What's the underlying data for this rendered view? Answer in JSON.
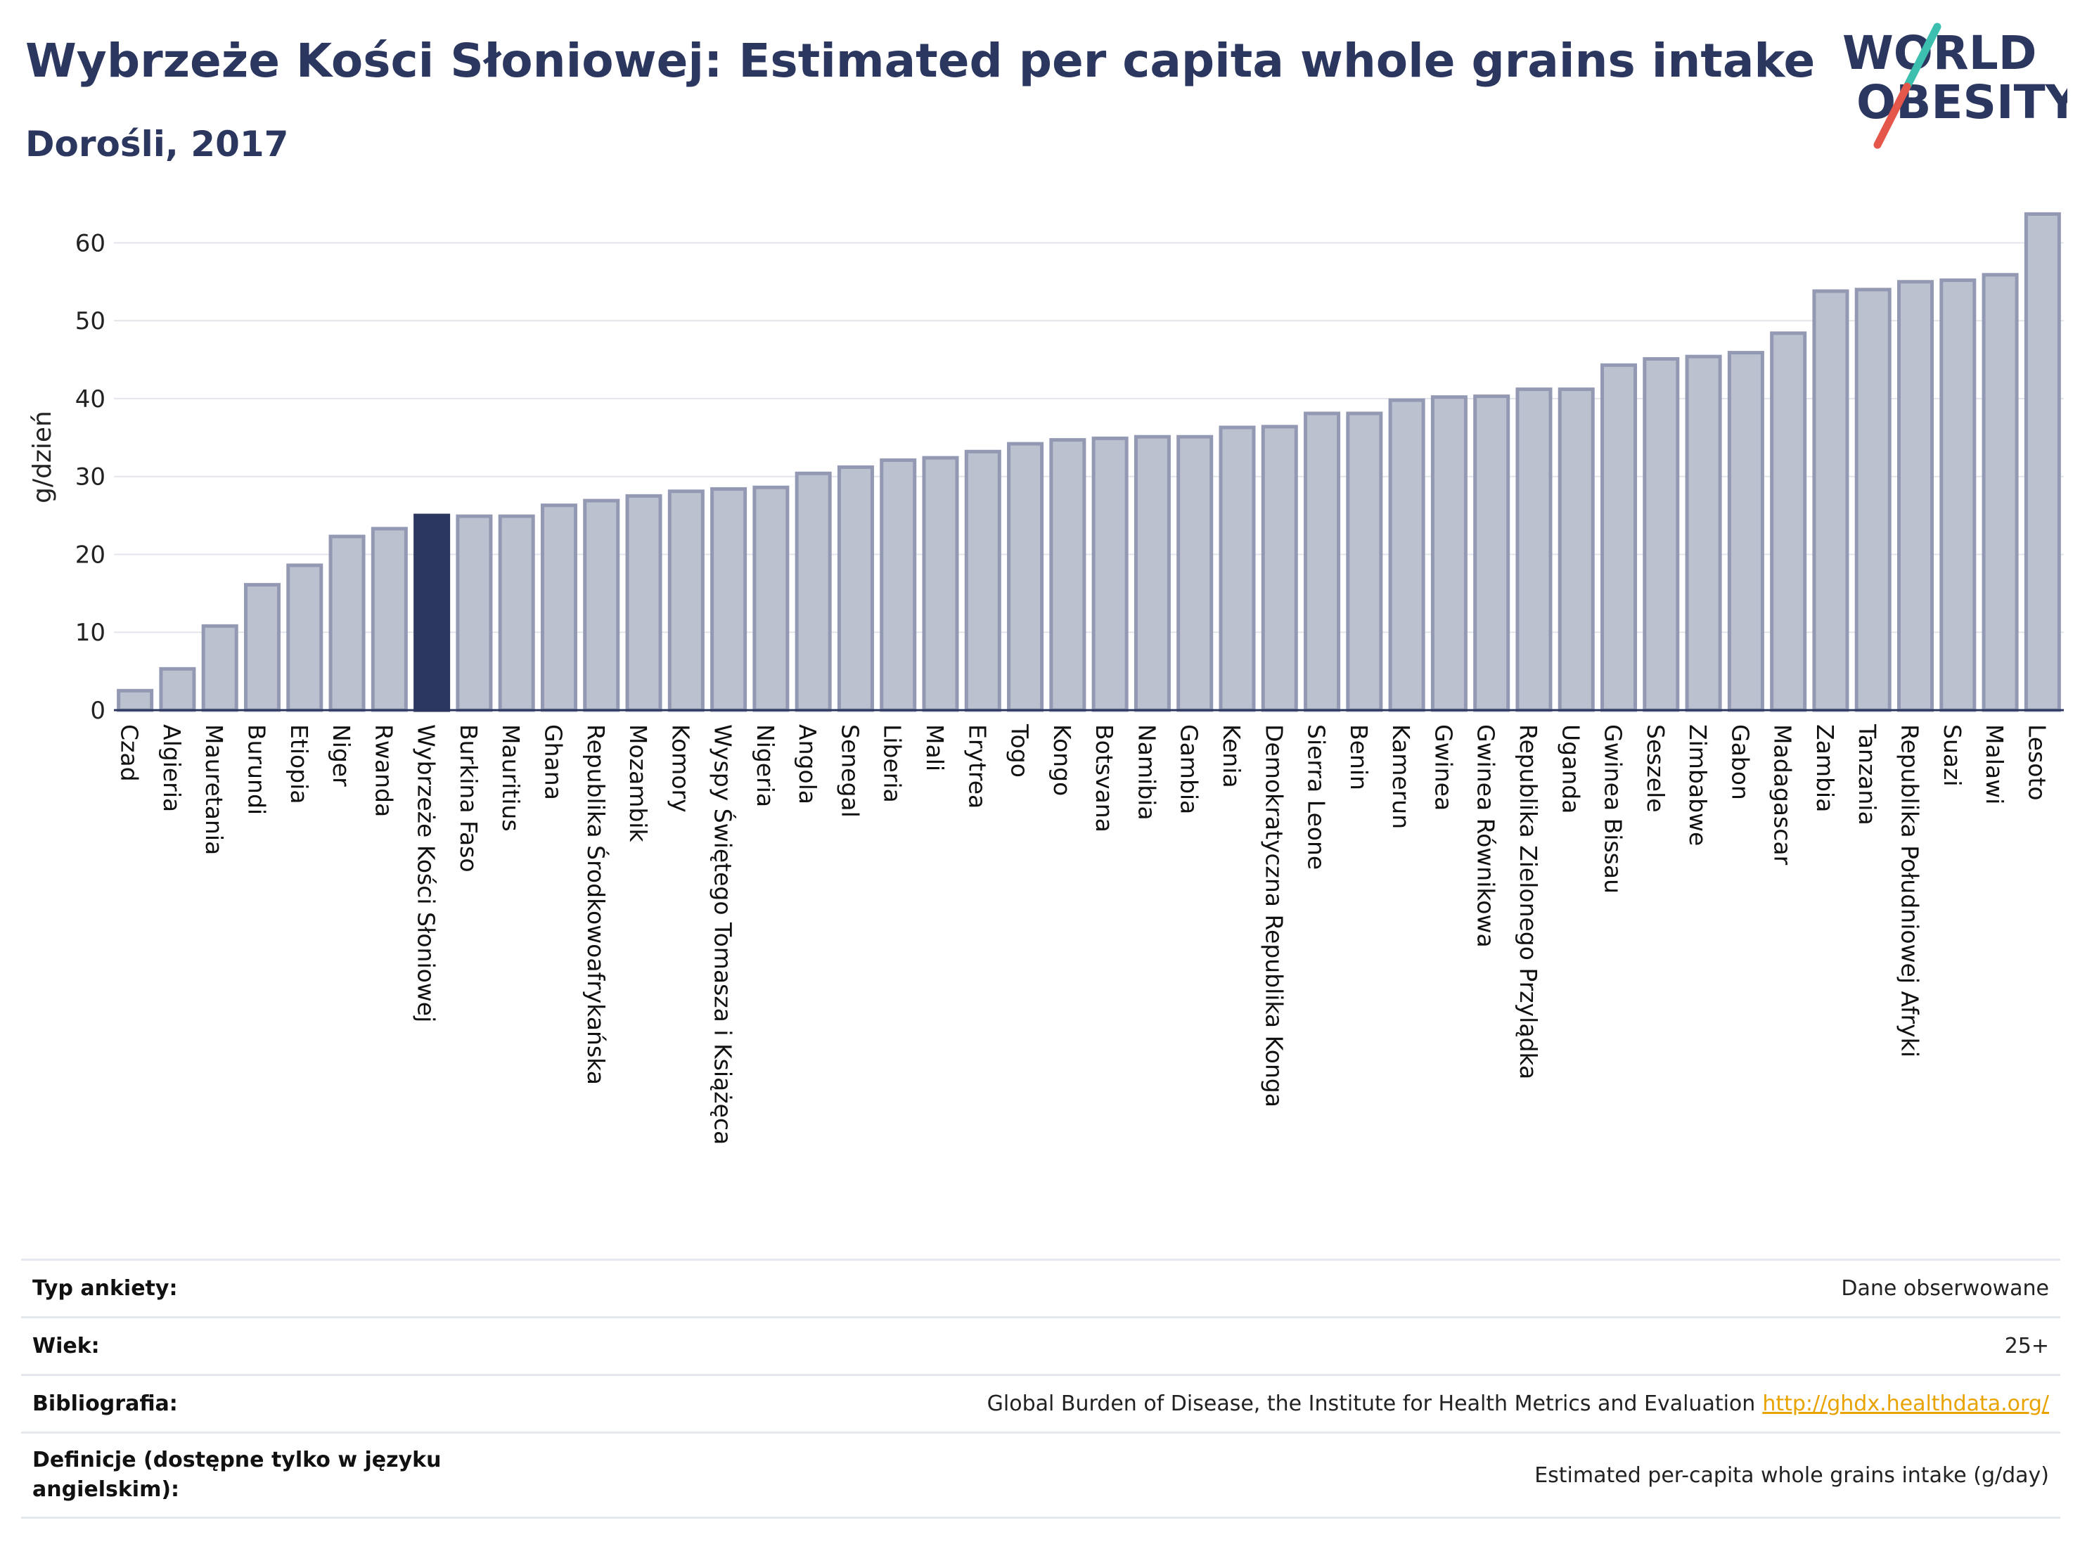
{
  "header": {
    "title": "Wybrzeże Kości Słoniowej: Estimated per capita whole grains intake",
    "subtitle": "Dorośli, 2017"
  },
  "logo": {
    "line1": "WORLD",
    "line2": "OBESITY",
    "accent_teal": "#3dbfb0",
    "accent_red": "#e5574b"
  },
  "colors": {
    "title": "#2c3760",
    "bar": "#bcc1cf",
    "bar_border": "#9399b3",
    "highlight": "#2c3760"
  },
  "chart_data": {
    "type": "bar",
    "ylabel": "g/dzień",
    "ylim": [
      0,
      65
    ],
    "yticks": [
      0,
      10,
      20,
      30,
      40,
      50,
      60
    ],
    "grid": true,
    "highlight": "Wybrzeże Kości Słoniowej",
    "categories": [
      "Czad",
      "Algieria",
      "Mauretania",
      "Burundi",
      "Etiopia",
      "Niger",
      "Rwanda",
      "Wybrzeże Kości Słoniowej",
      "Burkina Faso",
      "Mauritius",
      "Ghana",
      "Republika Środkowoafrykańska",
      "Mozambik",
      "Komory",
      "Wyspy Świętego Tomasza i Książęca",
      "Nigeria",
      "Angola",
      "Senegal",
      "Liberia",
      "Mali",
      "Erytrea",
      "Togo",
      "Kongo",
      "Botsvana",
      "Namibia",
      "Gambia",
      "Kenia",
      "Demokratyczna Republika Konga",
      "Sierra Leone",
      "Benin",
      "Kamerun",
      "Gwinea",
      "Gwinea Równikowa",
      "Republika Zielonego Przylądka",
      "Uganda",
      "Gwinea Bissau",
      "Seszele",
      "Zimbabwe",
      "Gabon",
      "Madagascar",
      "Zambia",
      "Tanzania",
      "Republika Południowej Afryki",
      "Suazi",
      "Malawi",
      "Lesoto"
    ],
    "values": [
      2.5,
      5.3,
      10.8,
      16.1,
      18.6,
      22.3,
      23.3,
      25.0,
      24.9,
      24.9,
      26.3,
      26.9,
      27.5,
      28.1,
      28.4,
      28.6,
      30.4,
      31.2,
      32.1,
      32.4,
      33.2,
      34.2,
      34.7,
      34.9,
      35.1,
      35.1,
      36.3,
      36.4,
      38.1,
      38.1,
      39.8,
      40.2,
      40.3,
      41.2,
      41.2,
      44.3,
      45.1,
      45.4,
      45.9,
      48.4,
      53.8,
      54.0,
      55.0,
      55.2,
      55.9,
      63.7
    ]
  },
  "info": [
    {
      "label": "Typ ankiety:",
      "value": "Dane obserwowane"
    },
    {
      "label": "Wiek:",
      "value": "25+"
    },
    {
      "label": "Bibliografia:",
      "value": "Global Burden of Disease, the Institute for Health Metrics and Evaluation",
      "link": "http://ghdx.healthdata.org/"
    },
    {
      "label": "Definicje (dostępne tylko w języku angielskim):",
      "value": "Estimated per-capita whole grains intake (g/day)"
    }
  ]
}
